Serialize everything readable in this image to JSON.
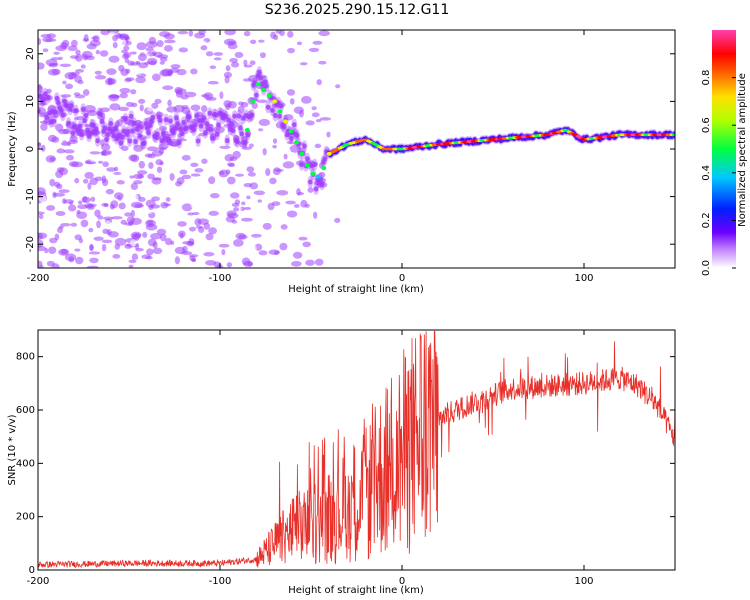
{
  "title": "S236.2025.290.15.12.G11",
  "chart_data": [
    {
      "type": "heatmap",
      "xlabel": "Height of straight line (km)",
      "ylabel": "Frequency (Hz)",
      "xlim": [
        -200,
        150
      ],
      "ylim": [
        -25,
        25
      ],
      "xticks": [
        -200,
        -100,
        0,
        100
      ],
      "yticks": [
        -20,
        -10,
        0,
        10,
        20
      ],
      "colorbar": {
        "label": "Normalized spectral amplitude",
        "range": [
          0,
          1
        ],
        "ticks": [
          "0.0",
          "0.2",
          "0.4",
          "0.6",
          "0.8"
        ]
      },
      "ridge": [
        {
          "x": -200,
          "y": 10
        },
        {
          "x": -180,
          "y": 6
        },
        {
          "x": -160,
          "y": 4
        },
        {
          "x": -140,
          "y": 4
        },
        {
          "x": -120,
          "y": 4
        },
        {
          "x": -100,
          "y": 5
        },
        {
          "x": -85,
          "y": 4
        },
        {
          "x": -80,
          "y": 14
        },
        {
          "x": -70,
          "y": 10
        },
        {
          "x": -60,
          "y": 3
        },
        {
          "x": -50,
          "y": -5
        },
        {
          "x": -45,
          "y": -6
        },
        {
          "x": -40,
          "y": -1
        },
        {
          "x": -30,
          "y": 1
        },
        {
          "x": -20,
          "y": 2
        },
        {
          "x": -10,
          "y": 0
        },
        {
          "x": 0,
          "y": 0
        },
        {
          "x": 20,
          "y": 1
        },
        {
          "x": 50,
          "y": 2
        },
        {
          "x": 80,
          "y": 3
        },
        {
          "x": 90,
          "y": 4
        },
        {
          "x": 100,
          "y": 2
        },
        {
          "x": 120,
          "y": 3
        },
        {
          "x": 150,
          "y": 3
        }
      ]
    },
    {
      "type": "line",
      "xlabel": "Height of straight line (km)",
      "ylabel": "SNR (10 * v/v)",
      "xlim": [
        -200,
        150
      ],
      "ylim": [
        0,
        900
      ],
      "xticks": [
        -200,
        -100,
        0,
        100
      ],
      "yticks": [
        0,
        200,
        400,
        600,
        800
      ],
      "color": "#e8302a",
      "envelope": [
        {
          "x": -200,
          "y": 20
        },
        {
          "x": -150,
          "y": 25
        },
        {
          "x": -100,
          "y": 25
        },
        {
          "x": -80,
          "y": 40
        },
        {
          "x": -60,
          "y": 150
        },
        {
          "x": -40,
          "y": 200
        },
        {
          "x": -20,
          "y": 280
        },
        {
          "x": -10,
          "y": 370
        },
        {
          "x": 0,
          "y": 430
        },
        {
          "x": 10,
          "y": 520
        },
        {
          "x": 20,
          "y": 570
        },
        {
          "x": 40,
          "y": 630
        },
        {
          "x": 60,
          "y": 680
        },
        {
          "x": 80,
          "y": 690
        },
        {
          "x": 100,
          "y": 700
        },
        {
          "x": 120,
          "y": 720
        },
        {
          "x": 130,
          "y": 690
        },
        {
          "x": 140,
          "y": 620
        },
        {
          "x": 150,
          "y": 490
        }
      ]
    }
  ],
  "colors": {
    "colormap": [
      "#ffffff",
      "#a040ff",
      "#2000ff",
      "#00c8ff",
      "#00ff40",
      "#f0f000",
      "#ff6000",
      "#ff0000",
      "#ff40a0"
    ]
  }
}
